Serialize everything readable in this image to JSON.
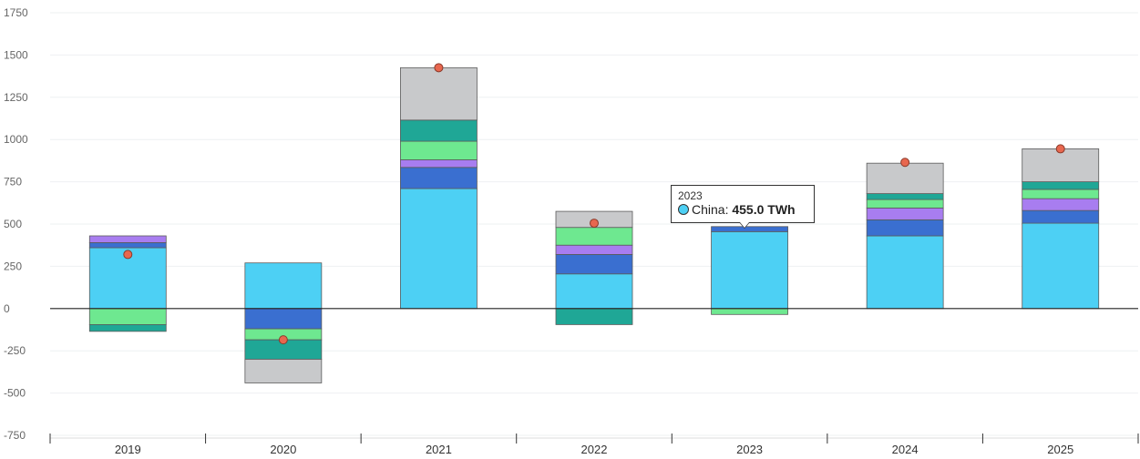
{
  "chart_data": {
    "type": "bar",
    "stacked": true,
    "categories": [
      "2019",
      "2020",
      "2021",
      "2022",
      "2023",
      "2024",
      "2025"
    ],
    "ylim": [
      -750,
      1750
    ],
    "yticks": [
      "1750",
      "1500",
      "1250",
      "1000",
      "750",
      "500",
      "250",
      "0",
      "-250",
      "-500",
      "-750"
    ],
    "ytick_values": [
      1750,
      1500,
      1250,
      1000,
      750,
      500,
      250,
      0,
      -250,
      -500,
      -750
    ],
    "grid": true,
    "series": [
      {
        "name": "China",
        "color": "#4dd0f4",
        "values": [
          360,
          270,
          710,
          205,
          455,
          430,
          505
        ]
      },
      {
        "name": "",
        "color": "#3a6fd0",
        "values": [
          30,
          -120,
          125,
          115,
          30,
          95,
          75
        ]
      },
      {
        "name": "",
        "color": "#a87df0",
        "values": [
          40,
          0,
          45,
          55,
          0,
          70,
          70
        ]
      },
      {
        "name": "",
        "color": "#6ee890",
        "values": [
          -95,
          -65,
          110,
          105,
          -35,
          50,
          55
        ]
      },
      {
        "name": "",
        "color": "#1fa796",
        "values": [
          -40,
          -115,
          125,
          -95,
          0,
          35,
          45
        ]
      },
      {
        "name": "",
        "color": "#c8c9cb",
        "values": [
          0,
          -140,
          310,
          95,
          0,
          180,
          195
        ]
      }
    ],
    "net_marker_color": "#e8674f",
    "net_values": [
      320,
      -185,
      1425,
      505,
      455,
      865,
      945
    ]
  },
  "tooltip": {
    "year": "2023",
    "series_label": "China:",
    "value_text": "455.0 TWh",
    "dot_color": "#4dd0f4"
  }
}
